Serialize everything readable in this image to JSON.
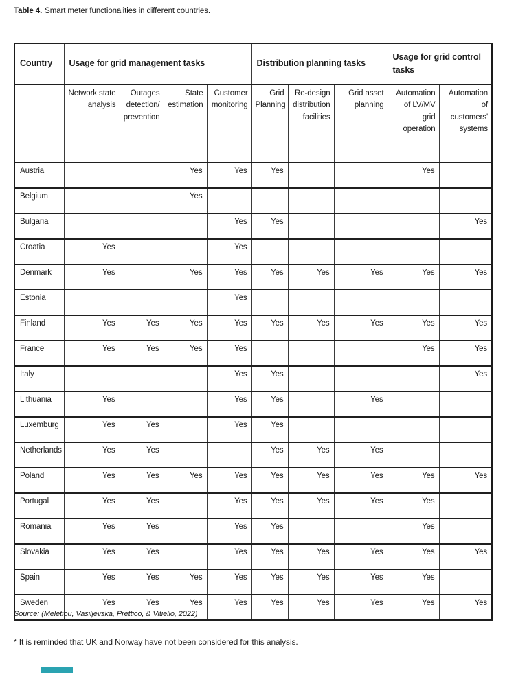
{
  "caption": {
    "label": "Table 4.",
    "text": "Smart meter functionalities in different countries."
  },
  "table": {
    "group_headers": [
      {
        "label": "Country",
        "colspan": 1
      },
      {
        "label": "Usage for grid management tasks",
        "colspan": 4
      },
      {
        "label": "Distribution planning tasks",
        "colspan": 3
      },
      {
        "label": "Usage for grid control tasks",
        "colspan": 2
      }
    ],
    "column_headers": [
      "",
      "Network state analysis",
      "Outages detection/ prevention",
      "State estimation",
      "Customer monitoring",
      "Grid Planning",
      "Re-design distribution facilities",
      "Grid asset planning",
      "Automation of LV/MV grid operation",
      "Automation of customers' systems"
    ],
    "rows": [
      {
        "country": "Austria",
        "values": [
          "",
          "",
          "Yes",
          "Yes",
          "Yes",
          "",
          "",
          "Yes",
          ""
        ]
      },
      {
        "country": "Belgium",
        "values": [
          "",
          "",
          "Yes",
          "",
          "",
          "",
          "",
          "",
          ""
        ]
      },
      {
        "country": "Bulgaria",
        "values": [
          "",
          "",
          "",
          "Yes",
          "Yes",
          "",
          "",
          "",
          "Yes"
        ]
      },
      {
        "country": "Croatia",
        "values": [
          "Yes",
          "",
          "",
          "Yes",
          "",
          "",
          "",
          "",
          ""
        ]
      },
      {
        "country": "Denmark",
        "values": [
          "Yes",
          "",
          "Yes",
          "Yes",
          "Yes",
          "Yes",
          "Yes",
          "Yes",
          "Yes"
        ]
      },
      {
        "country": "Estonia",
        "values": [
          "",
          "",
          "",
          "Yes",
          "",
          "",
          "",
          "",
          ""
        ]
      },
      {
        "country": "Finland",
        "values": [
          "Yes",
          "Yes",
          "Yes",
          "Yes",
          "Yes",
          "Yes",
          "Yes",
          "Yes",
          "Yes"
        ]
      },
      {
        "country": "France",
        "values": [
          "Yes",
          "Yes",
          "Yes",
          "Yes",
          "",
          "",
          "",
          "Yes",
          "Yes"
        ]
      },
      {
        "country": "Italy",
        "values": [
          "",
          "",
          "",
          "Yes",
          "Yes",
          "",
          "",
          "",
          "Yes"
        ]
      },
      {
        "country": "Lithuania",
        "values": [
          "Yes",
          "",
          "",
          "Yes",
          "Yes",
          "",
          "Yes",
          "",
          ""
        ]
      },
      {
        "country": "Luxemburg",
        "values": [
          "Yes",
          "Yes",
          "",
          "Yes",
          "Yes",
          "",
          "",
          "",
          ""
        ]
      },
      {
        "country": "Netherlands",
        "values": [
          "Yes",
          "Yes",
          "",
          "",
          "Yes",
          "Yes",
          "Yes",
          "",
          ""
        ]
      },
      {
        "country": "Poland",
        "values": [
          "Yes",
          "Yes",
          "Yes",
          "Yes",
          "Yes",
          "Yes",
          "Yes",
          "Yes",
          "Yes"
        ]
      },
      {
        "country": "Portugal",
        "values": [
          "Yes",
          "Yes",
          "",
          "Yes",
          "Yes",
          "Yes",
          "Yes",
          "Yes",
          ""
        ]
      },
      {
        "country": "Romania",
        "values": [
          "Yes",
          "Yes",
          "",
          "Yes",
          "Yes",
          "",
          "",
          "Yes",
          ""
        ]
      },
      {
        "country": "Slovakia",
        "values": [
          "Yes",
          "Yes",
          "",
          "Yes",
          "Yes",
          "Yes",
          "Yes",
          "Yes",
          "Yes"
        ]
      },
      {
        "country": "Spain",
        "values": [
          "Yes",
          "Yes",
          "Yes",
          "Yes",
          "Yes",
          "Yes",
          "Yes",
          "Yes",
          ""
        ]
      },
      {
        "country": "Sweden",
        "values": [
          "Yes",
          "Yes",
          "Yes",
          "Yes",
          "Yes",
          "Yes",
          "Yes",
          "Yes",
          "Yes"
        ]
      }
    ]
  },
  "source": "Source: (Meletiou, Vasiljevska, Prettico, & Vitiello, 2022)",
  "footnote": "* It is reminded that UK and Norway have not been considered for this analysis."
}
